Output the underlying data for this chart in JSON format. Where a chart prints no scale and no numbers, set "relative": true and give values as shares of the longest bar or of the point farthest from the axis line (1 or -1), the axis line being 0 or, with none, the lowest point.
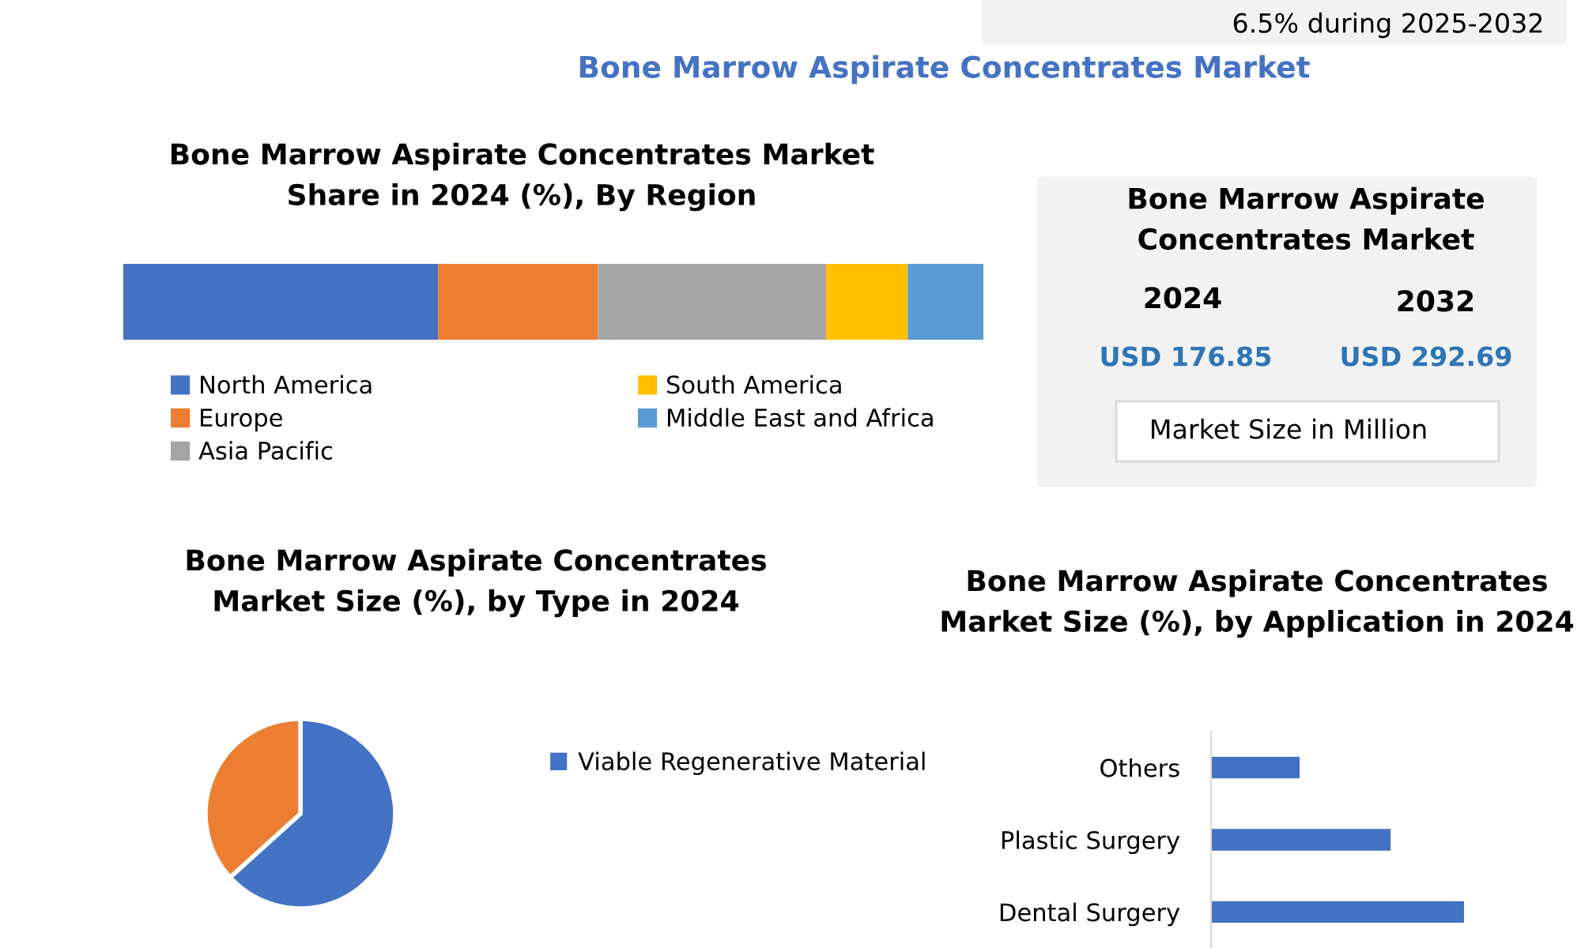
{
  "chart_data": [
    {
      "type": "other",
      "annotations": [
        "6.5% during 2025-2032",
        "Bone Marrow Aspirate Concentrates Market"
      ]
    },
    {
      "type": "bar",
      "title": "Bone Marrow Aspirate Concentrates Market\nShare in 2024 (%), By Region",
      "orientation": "horizontal",
      "stacked": true,
      "relative": true,
      "legend": "bottom",
      "categories": [
        null
      ],
      "series": [
        {
          "name": "North America",
          "color": "#4472c4",
          "values": [
            0.366
          ]
        },
        {
          "name": "Europe",
          "color": "#ed7d31",
          "values": [
            0.186
          ]
        },
        {
          "name": "Asia Pacific",
          "color": "#a5a5a5",
          "values": [
            0.265
          ]
        },
        {
          "name": "South America",
          "color": "#ffc000",
          "values": [
            0.095
          ]
        },
        {
          "name": "Middle East and Africa",
          "color": "#5b9bd5",
          "values": [
            0.088
          ]
        }
      ]
    },
    {
      "type": "other",
      "annotations": [
        "Bone Marrow Aspirate\nConcentrates Market",
        "2024",
        "2032",
        "USD 176.85",
        "USD 292.69",
        "Market Size in Million"
      ]
    },
    {
      "type": "pie",
      "title": "Bone Marrow Aspirate Concentrates\nMarket Size (%), by Type in 2024",
      "legend": "right",
      "categories": [
        "Viable Regenerative Material",
        null
      ],
      "values": [
        63.3,
        36.7
      ],
      "colors": [
        "#4472c4",
        "#ed7d31"
      ]
    },
    {
      "type": "bar",
      "title": "Bone Marrow Aspirate Concentrates\nMarket Size (%), by Application in 2024",
      "orientation": "horizontal",
      "relative": true,
      "categories": [
        "Others",
        "Plastic Surgery",
        "Dental Surgery"
      ],
      "values": [
        0.35,
        0.71,
        1
      ],
      "color": "#4472c4"
    }
  ]
}
